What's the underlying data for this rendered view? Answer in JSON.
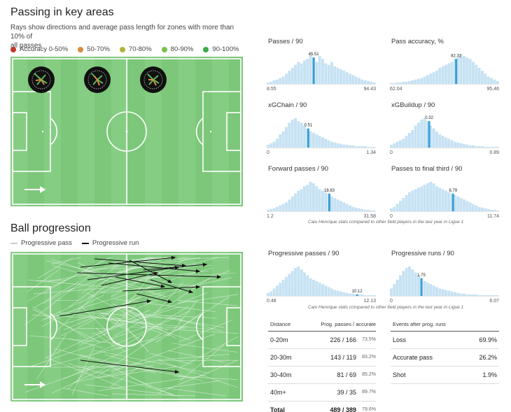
{
  "passing": {
    "title": "Passing in key areas",
    "subtitle_line1": "Rays show directions and average pass length for zones with more than 10% of",
    "subtitle_line2": "all passes",
    "legend": [
      {
        "label": "Accuracy 0-50%",
        "color": "#c0392b"
      },
      {
        "label": "50-70%",
        "color": "#d98a3a"
      },
      {
        "label": "70-80%",
        "color": "#b3b33a"
      },
      {
        "label": "80-90%",
        "color": "#7cbf45"
      },
      {
        "label": "90-100%",
        "color": "#3dab4a"
      }
    ],
    "pitch_color": "#7cc77a"
  },
  "progression": {
    "title": "Ball progression",
    "legend_pass": "Progressive pass",
    "legend_run": "Progressive run"
  },
  "chart_data": [
    {
      "type": "bar",
      "title": "Passes / 90",
      "min_label": "8.55",
      "max_label": "94.43",
      "value_label": "45.51",
      "xlim": [
        8.55,
        94.43
      ],
      "highlight": 45.51,
      "color": "#bfe0f2",
      "highlight_color": "#3a9fd6"
    },
    {
      "type": "bar",
      "title": "Pass accuracy, %",
      "min_label": "62.04",
      "max_label": "95.46",
      "value_label": "82.32",
      "xlim": [
        62.04,
        95.46
      ],
      "highlight": 82.32
    },
    {
      "type": "bar",
      "title": "xGChain / 90",
      "min_label": "0",
      "max_label": "1.34",
      "value_label": "0.51",
      "xlim": [
        0,
        1.34
      ],
      "highlight": 0.51
    },
    {
      "type": "bar",
      "title": "xGBuildup / 90",
      "min_label": "0",
      "max_label": "0.89",
      "value_label": "0.32",
      "xlim": [
        0,
        0.89
      ],
      "highlight": 0.32
    },
    {
      "type": "bar",
      "title": "Forward passes / 90",
      "min_label": "1.2",
      "max_label": "31.58",
      "value_label": "18.63",
      "xlim": [
        1.2,
        31.58
      ],
      "highlight": 18.63
    },
    {
      "type": "bar",
      "title": "Passes to final third / 90",
      "min_label": "0",
      "max_label": "11.74",
      "value_label": "6.79",
      "xlim": [
        0,
        11.74
      ],
      "highlight": 6.79
    },
    {
      "type": "bar",
      "title": "Progressive passes / 90",
      "min_label": "0.48",
      "max_label": "12.13",
      "value_label": "10.12",
      "xlim": [
        0.48,
        12.13
      ],
      "highlight": 10.12
    },
    {
      "type": "bar",
      "title": "Progressive runs / 90",
      "min_label": "0",
      "max_label": "6.07",
      "value_label": "1.75",
      "xlim": [
        0,
        6.07
      ],
      "highlight": 1.75
    }
  ],
  "footnote": "Caio Henrique stats compared to other field players in the last year in Ligue 1",
  "distance_table": {
    "headers": [
      "Distance",
      "Prog. passes / accurate"
    ],
    "rows": [
      {
        "label": "0-20m",
        "value": "226 / 166",
        "pct": "73.5%"
      },
      {
        "label": "20-30m",
        "value": "143 / 119",
        "pct": "83.2%"
      },
      {
        "label": "30-40m",
        "value": "81 / 69",
        "pct": "85.2%"
      },
      {
        "label": "40m+",
        "value": "39 / 35",
        "pct": "89.7%"
      }
    ],
    "total": {
      "label": "Total",
      "value": "489 / 389",
      "pct": "79.6%"
    }
  },
  "events_table": {
    "header": "Events after prog. runs",
    "rows": [
      {
        "label": "Loss",
        "value": "69.9%"
      },
      {
        "label": "Accurate pass",
        "value": "26.2%"
      },
      {
        "label": "Shot",
        "value": "1.9%"
      }
    ]
  }
}
